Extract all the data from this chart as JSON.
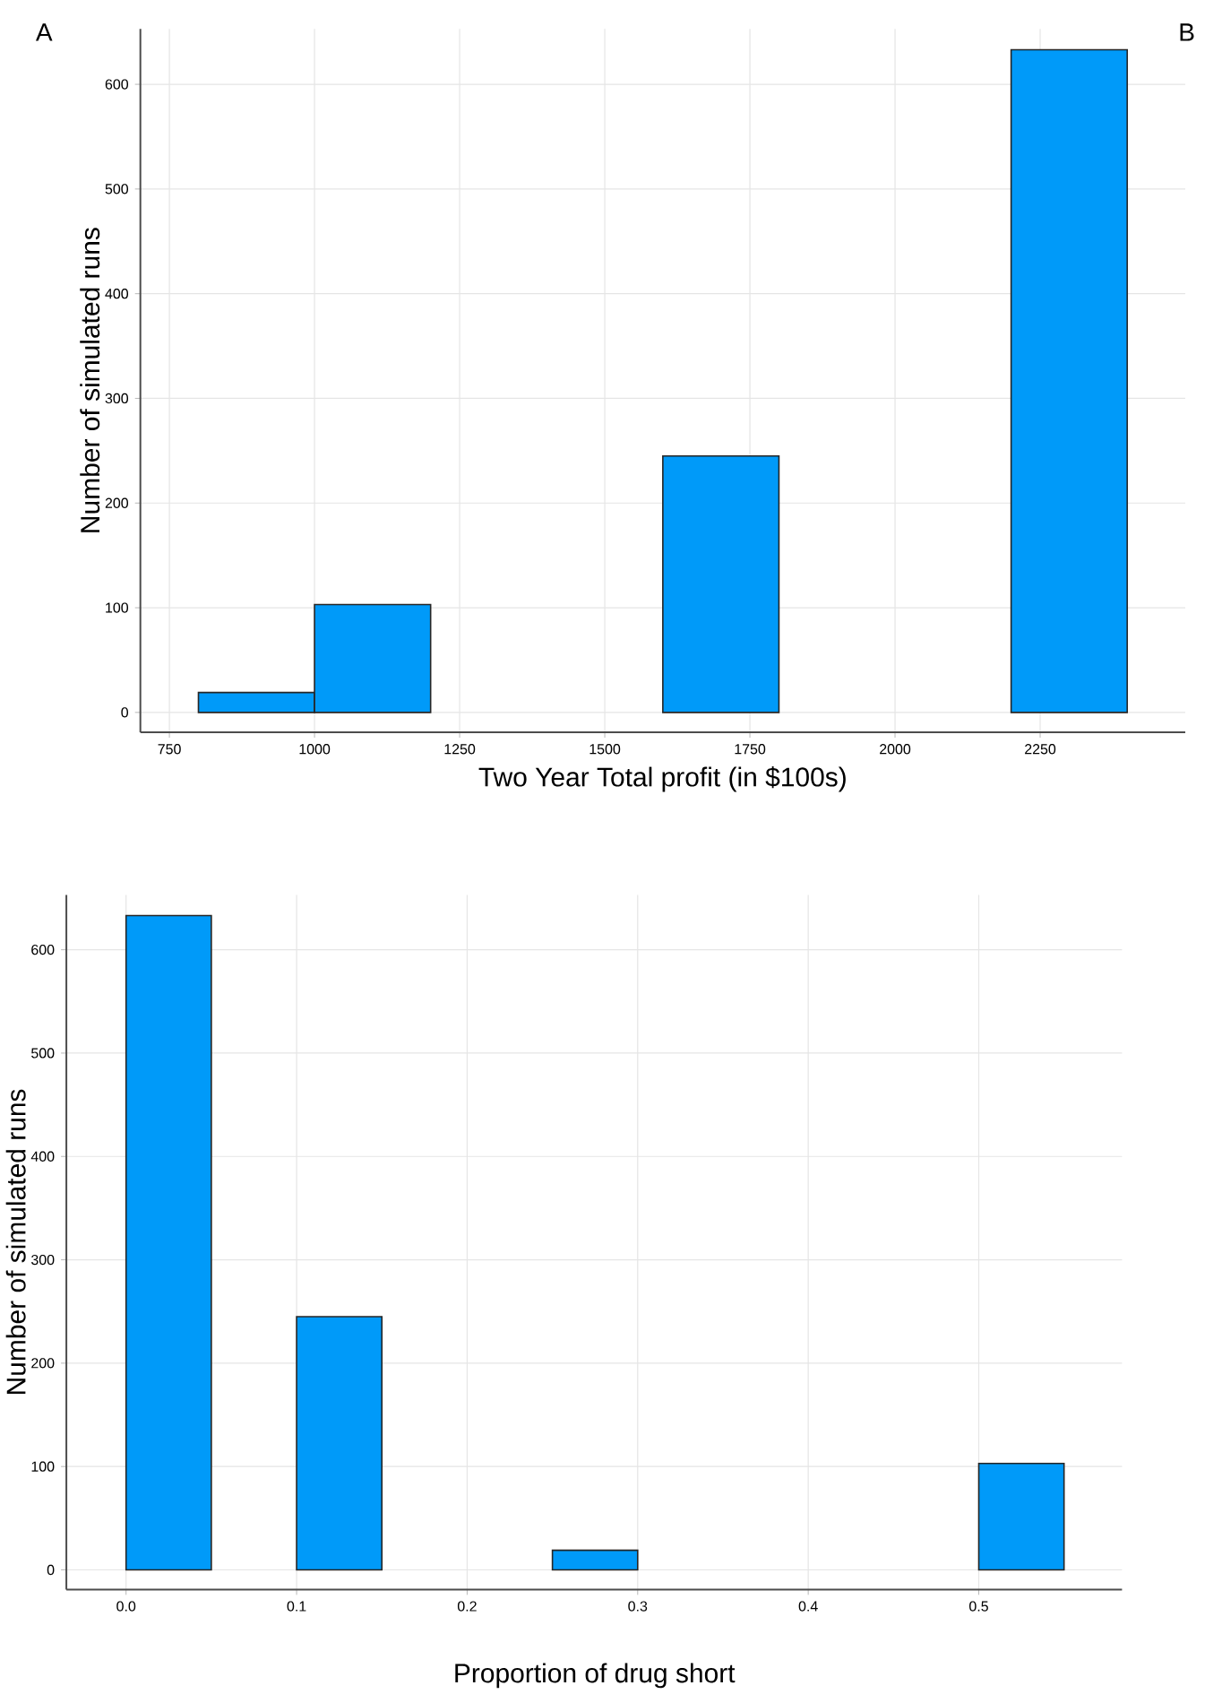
{
  "chart_data": [
    {
      "type": "histogram",
      "annotations": [
        "A",
        "B"
      ],
      "xlabel": "Two Year Total profit (in $100s)",
      "ylabel": "Number of simulated runs",
      "bins": [
        800,
        1000,
        1200,
        1400,
        1600,
        1800,
        2000,
        2200,
        2400
      ],
      "values": [
        19,
        103,
        0,
        0,
        245,
        0,
        0,
        633
      ],
      "color": "#009af9",
      "xlim": [
        700,
        2500
      ],
      "ylim": [
        -19,
        653
      ],
      "xticks": [
        750,
        1000,
        1250,
        1500,
        1750,
        2000,
        2250
      ],
      "yticks": [
        0,
        100,
        200,
        300,
        400,
        500,
        600
      ],
      "grid": true
    },
    {
      "type": "histogram",
      "xlabel": "Proportion of drug short",
      "ylabel": "Number of simulated runs",
      "bins": [
        0,
        0.05,
        0.1,
        0.15,
        0.2,
        0.25,
        0.3,
        0.35,
        0.4,
        0.45,
        0.5,
        0.55
      ],
      "values": [
        633,
        0,
        245,
        0,
        0,
        19,
        0,
        0,
        0,
        0,
        103
      ],
      "color": "#009af9",
      "xlim": [
        -0.035,
        0.584
      ],
      "ylim": [
        -19,
        653
      ],
      "xticks": [
        {
          "value": 0,
          "label": "0.0"
        },
        0.1,
        0.2,
        0.3,
        0.4,
        0.5
      ],
      "yticks": [
        0,
        100,
        200,
        300,
        400,
        500,
        600
      ],
      "grid": true
    }
  ]
}
